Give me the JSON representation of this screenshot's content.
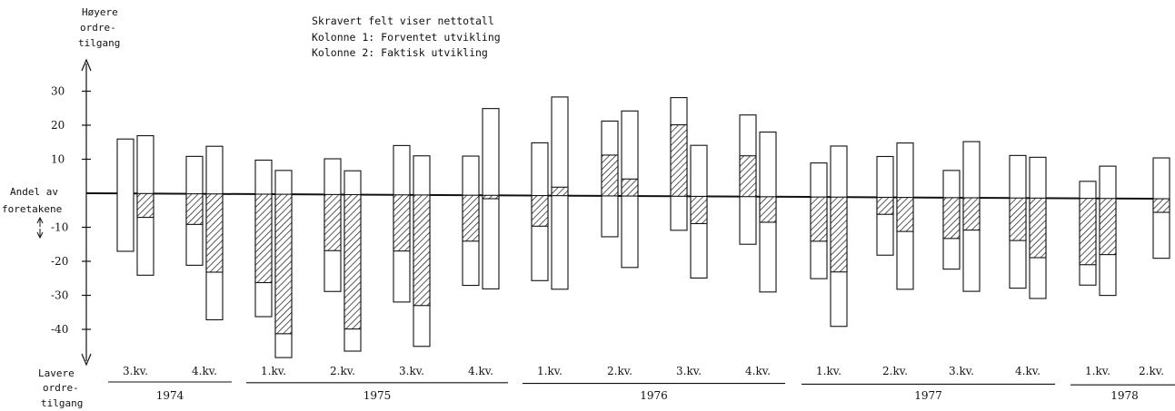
{
  "chart_data": {
    "type": "bar",
    "legend": {
      "title": "Skravert felt viser nettotall",
      "col1": "Kolonne 1: Forventet utvikling",
      "col2": "Kolonne 2: Faktisk utvikling"
    },
    "y_top_label": [
      "Høyere",
      "ordre-",
      "tilgang"
    ],
    "y_mid_label": [
      "Andel av",
      "foretakene"
    ],
    "y_bottom_label": [
      "Lavere",
      "ordre-",
      "tilgang"
    ],
    "yticks": [
      "30",
      "20",
      "10",
      "-10",
      "-20",
      "-30",
      "-40"
    ],
    "ylim": [
      -50,
      35
    ],
    "categories": [
      "3.kv.",
      "4.kv.",
      "1.kv.",
      "2.kv.",
      "3.kv.",
      "4.kv.",
      "1.kv.",
      "2.kv.",
      "3.kv.",
      "4.kv.",
      "1.kv.",
      "2.kv.",
      "3.kv.",
      "4.kv.",
      "1.kv.",
      "2.kv."
    ],
    "years": [
      {
        "label": "1974",
        "from": 0,
        "to": 1
      },
      {
        "label": "1975",
        "from": 2,
        "to": 5
      },
      {
        "label": "1976",
        "from": 6,
        "to": 9
      },
      {
        "label": "1977",
        "from": 10,
        "to": 13
      },
      {
        "label": "1978",
        "from": 14,
        "to": 15
      }
    ],
    "series": [
      {
        "up": [
          16,
          11,
          10,
          10.5,
          14.5,
          11.5,
          15.5,
          22,
          29,
          24,
          10,
          12,
          8,
          12.5,
          5,
          null
        ],
        "down": [
          -17,
          -21,
          -36,
          -28.5,
          -31.5,
          -26.5,
          -25,
          -12,
          -10,
          -14,
          -24,
          -17,
          -21,
          -26.5,
          -25.5,
          null
        ],
        "net": [
          0,
          -9,
          -26,
          -16.5,
          -16.5,
          -13.5,
          -9,
          12,
          21,
          12,
          -13,
          -5,
          -12,
          -12.5,
          -19.5,
          null
        ]
      },
      {
        "up": [
          17,
          14,
          7,
          7,
          11.5,
          25.5,
          29,
          25,
          15,
          19,
          15,
          16,
          16.5,
          12,
          9.5,
          12
        ],
        "down": [
          -24,
          -37,
          -48,
          -46,
          -44.5,
          -27.5,
          -27.5,
          -21,
          -24,
          -28,
          -38,
          -27,
          -27.5,
          -29.5,
          -28.5,
          -17.5
        ],
        "net": [
          -7,
          -23,
          -41,
          -39.5,
          -32.5,
          -1,
          2.5,
          5,
          -8,
          -7.5,
          -22,
          -10,
          -9.5,
          -17.5,
          -16.5,
          -4
        ]
      }
    ]
  }
}
